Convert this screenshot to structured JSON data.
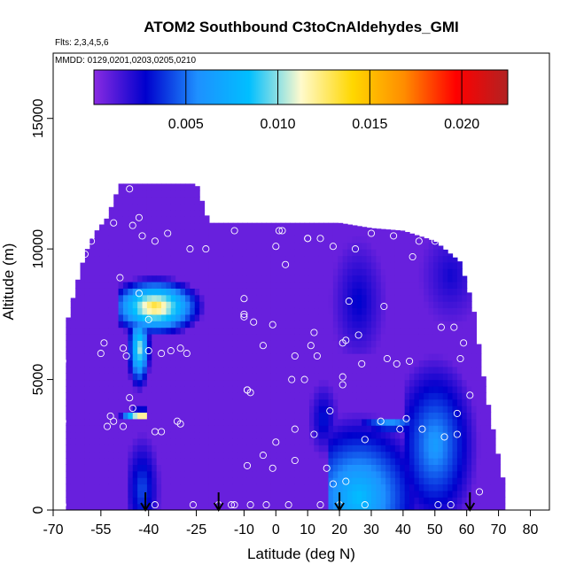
{
  "chart_data": {
    "type": "heatmap",
    "title": "ATOM2 Southbound C3toCnAldehydes_GMI",
    "flights_note": "Flts: 2,3,4,5,6",
    "dates_note": "MMDD: 0129,0201,0203,0205,0210",
    "xlabel": "Latitude (deg N)",
    "ylabel": "Altitude (m)",
    "xlim": [
      -70,
      86
    ],
    "ylim": [
      0,
      17500
    ],
    "x_ticks": [
      -70,
      -55,
      -40,
      -25,
      -10,
      0,
      10,
      20,
      30,
      40,
      50,
      60,
      70,
      80
    ],
    "x_tick_labels": [
      "-70",
      "-55",
      "-40",
      "-25",
      "-10",
      "0",
      "10",
      "20",
      "30",
      "40",
      "50",
      "60",
      "70",
      "80"
    ],
    "y_ticks": [
      0,
      5000,
      10000,
      15000
    ],
    "y_tick_labels": [
      "0",
      "5000",
      "10000",
      "15000"
    ],
    "colorbar": {
      "range": [
        0.0,
        0.0225
      ],
      "ticks": [
        0.005,
        0.01,
        0.015,
        0.02
      ],
      "tick_labels": [
        "0.005",
        "0.010",
        "0.015",
        "0.020"
      ],
      "colors": [
        "#8a2be2",
        "#0000cd",
        "#1e90ff",
        "#00bfff",
        "#fffacd",
        "#ffd700",
        "#ff8c00",
        "#ff0000",
        "#b22222"
      ]
    },
    "background_value": 0.0007,
    "coverage_envelope": [
      {
        "x": -66,
        "top": 7000
      },
      {
        "x": -63,
        "top": 8500
      },
      {
        "x": -60,
        "top": 9800
      },
      {
        "x": -57,
        "top": 10600
      },
      {
        "x": -53,
        "top": 11200
      },
      {
        "x": -49,
        "top": 12500
      },
      {
        "x": -25,
        "top": 12500
      },
      {
        "x": -21,
        "top": 11000
      },
      {
        "x": 20,
        "top": 11000
      },
      {
        "x": 30,
        "top": 10800
      },
      {
        "x": 40,
        "top": 10700
      },
      {
        "x": 50,
        "top": 10300
      },
      {
        "x": 58,
        "top": 9500
      },
      {
        "x": 62,
        "top": 7800
      },
      {
        "x": 66,
        "top": 4500
      },
      {
        "x": 70,
        "top": 2000
      },
      {
        "x": 72,
        "top": 800
      }
    ],
    "features": [
      {
        "x0": -50,
        "x1": -22,
        "y0": 6800,
        "y1": 9000,
        "peak_x": -38,
        "peak_y": 7800,
        "value": 0.014
      },
      {
        "x0": -47,
        "x1": -39,
        "y0": 4500,
        "y1": 7000,
        "peak_x": -43,
        "peak_y": 6200,
        "value": 0.011
      },
      {
        "x0": -50,
        "x1": -40,
        "y0": 3500,
        "y1": 3900,
        "peak_x": -42,
        "peak_y": 3700,
        "value": 0.019
      },
      {
        "x0": -47,
        "x1": -36,
        "y0": 0,
        "y1": 3000,
        "peak_x": -42,
        "peak_y": 800,
        "value": 0.0045
      },
      {
        "x0": 17,
        "x1": 48,
        "y0": 0,
        "y1": 3800,
        "peak_x": 26,
        "peak_y": 500,
        "value": 0.0085
      },
      {
        "x0": 26,
        "x1": 48,
        "y0": 3000,
        "y1": 3600,
        "peak_x": 36,
        "peak_y": 3300,
        "value": 0.0075
      },
      {
        "x0": 40,
        "x1": 64,
        "y0": 0,
        "y1": 6000,
        "peak_x": 50,
        "peak_y": 2500,
        "value": 0.0065
      },
      {
        "x0": 10,
        "x1": 20,
        "y0": 2000,
        "y1": 5000,
        "peak_x": 15,
        "peak_y": 3500,
        "value": 0.0035
      },
      {
        "x0": 17,
        "x1": 35,
        "y0": 6000,
        "y1": 10500,
        "peak_x": 26,
        "peak_y": 8000,
        "value": 0.003
      },
      {
        "x0": 45,
        "x1": 62,
        "y0": 7000,
        "y1": 10500,
        "peak_x": 55,
        "peak_y": 9000,
        "value": 0.0025
      }
    ],
    "observation_points": [
      [
        -67,
        200
      ],
      [
        -67,
        3400
      ],
      [
        -67,
        5700
      ],
      [
        -60,
        9800
      ],
      [
        -58,
        10300
      ],
      [
        -55,
        6000
      ],
      [
        -54,
        6400
      ],
      [
        -53,
        3200
      ],
      [
        -52,
        3600
      ],
      [
        -51,
        3400
      ],
      [
        -51,
        11000
      ],
      [
        -49,
        8900
      ],
      [
        -48,
        3200
      ],
      [
        -48,
        6200
      ],
      [
        -47,
        5900
      ],
      [
        -46,
        12300
      ],
      [
        -46,
        4300
      ],
      [
        -45,
        3900
      ],
      [
        -45,
        10900
      ],
      [
        -43,
        11200
      ],
      [
        -43,
        8300
      ],
      [
        -42,
        10500
      ],
      [
        -40,
        7300
      ],
      [
        -40,
        6100
      ],
      [
        -38,
        3000
      ],
      [
        -38,
        10300
      ],
      [
        -38,
        200
      ],
      [
        -36,
        3000
      ],
      [
        -36,
        6000
      ],
      [
        -34,
        10600
      ],
      [
        -33,
        6100
      ],
      [
        -31,
        3400
      ],
      [
        -30,
        6200
      ],
      [
        -30,
        3300
      ],
      [
        -28,
        6000
      ],
      [
        -27,
        10000
      ],
      [
        -26,
        200
      ],
      [
        -22,
        10000
      ],
      [
        -18,
        200
      ],
      [
        -14,
        200
      ],
      [
        -13,
        10700
      ],
      [
        -13,
        200
      ],
      [
        -10,
        12000
      ],
      [
        -10,
        8100
      ],
      [
        -10,
        7500
      ],
      [
        -10,
        7400
      ],
      [
        -9,
        4600
      ],
      [
        -9,
        4600
      ],
      [
        -9,
        1700
      ],
      [
        -8,
        4500
      ],
      [
        -8,
        200
      ],
      [
        -7,
        7200
      ],
      [
        -4,
        6300
      ],
      [
        -4,
        2100
      ],
      [
        -3,
        200
      ],
      [
        -1,
        1600
      ],
      [
        -1,
        7100
      ],
      [
        0,
        2600
      ],
      [
        0,
        10100
      ],
      [
        1,
        10700
      ],
      [
        2,
        10700
      ],
      [
        3,
        9400
      ],
      [
        4,
        200
      ],
      [
        5,
        5000
      ],
      [
        6,
        5900
      ],
      [
        6,
        1900
      ],
      [
        6,
        3100
      ],
      [
        9,
        5000
      ],
      [
        10,
        10400
      ],
      [
        10,
        10400
      ],
      [
        11,
        6300
      ],
      [
        12,
        2900
      ],
      [
        12,
        6800
      ],
      [
        13,
        5900
      ],
      [
        14,
        10400
      ],
      [
        14,
        200
      ],
      [
        16,
        1600
      ],
      [
        17,
        3800
      ],
      [
        18,
        1000
      ],
      [
        18,
        10100
      ],
      [
        20,
        200
      ],
      [
        21,
        6400
      ],
      [
        21,
        5100
      ],
      [
        21,
        4800
      ],
      [
        22,
        1100
      ],
      [
        22,
        6500
      ],
      [
        23,
        8000
      ],
      [
        25,
        10000
      ],
      [
        26,
        6700
      ],
      [
        27,
        5600
      ],
      [
        28,
        2700
      ],
      [
        28,
        200
      ],
      [
        30,
        10600
      ],
      [
        33,
        3400
      ],
      [
        34,
        7800
      ],
      [
        35,
        5800
      ],
      [
        37,
        10500
      ],
      [
        38,
        5600
      ],
      [
        39,
        3100
      ],
      [
        41,
        3500
      ],
      [
        42,
        5700
      ],
      [
        43,
        9700
      ],
      [
        45,
        10300
      ],
      [
        46,
        3100
      ],
      [
        50,
        10300
      ],
      [
        51,
        200
      ],
      [
        52,
        7000
      ],
      [
        53,
        2800
      ],
      [
        55,
        200
      ],
      [
        56,
        7000
      ],
      [
        57,
        2900
      ],
      [
        57,
        3700
      ],
      [
        58,
        5800
      ],
      [
        59,
        6400
      ],
      [
        61,
        4400
      ],
      [
        64,
        700
      ]
    ],
    "flight_arrows_x": [
      -41,
      -18,
      20,
      61
    ]
  }
}
